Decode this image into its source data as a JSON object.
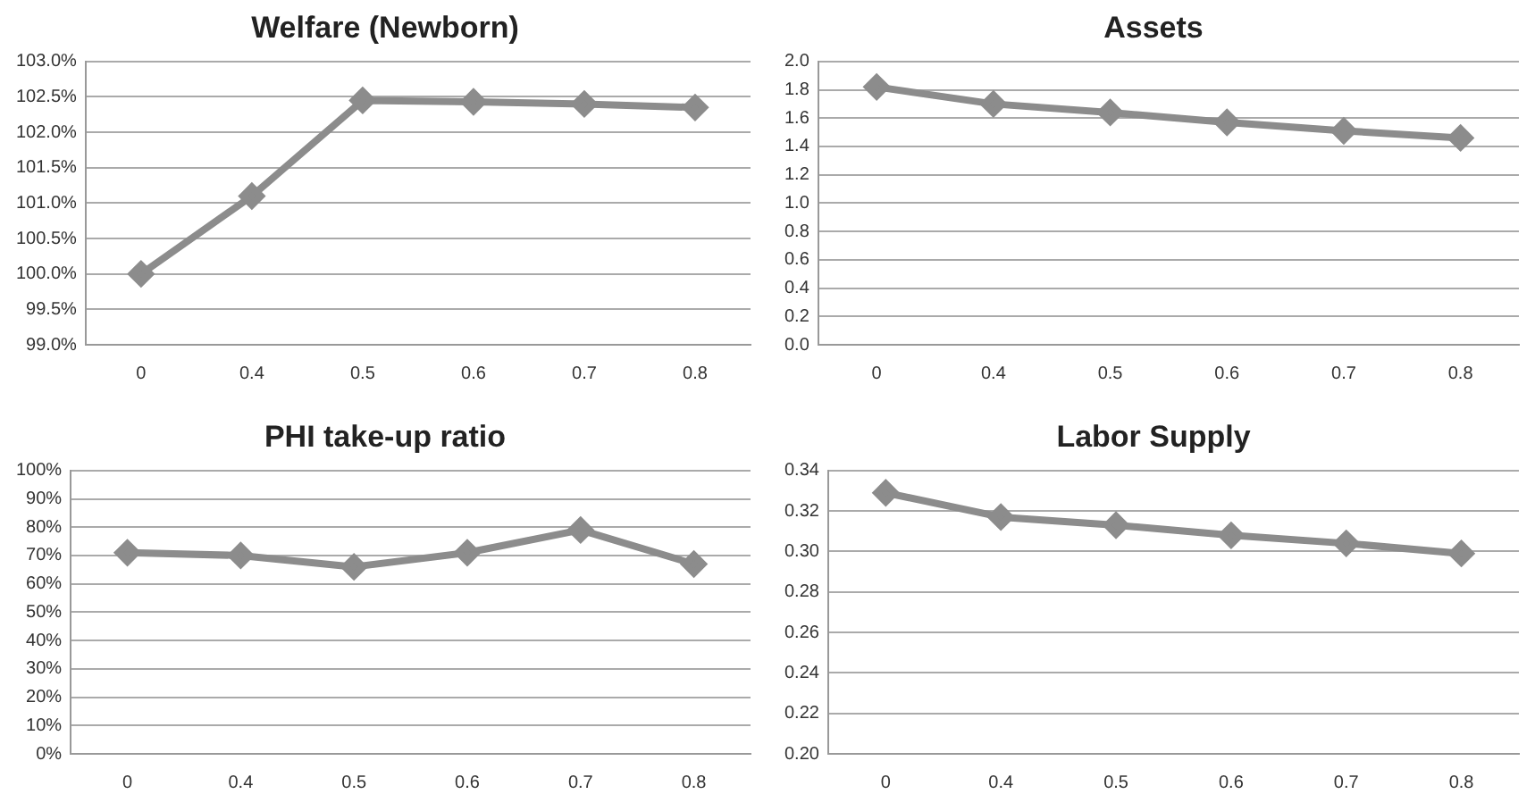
{
  "chart_data": [
    {
      "type": "line",
      "title": "Welfare (Newborn)",
      "categories": [
        "0",
        "0.4",
        "0.5",
        "0.6",
        "0.7",
        "0.8"
      ],
      "series": [
        {
          "color": "#8c8c8c",
          "values": [
            100.0,
            101.1,
            102.45,
            102.43,
            102.4,
            102.35
          ]
        }
      ],
      "ylim": [
        99,
        103
      ],
      "yticks": [
        {
          "value": 99,
          "label": "99.0%"
        },
        {
          "value": 99.5,
          "label": "99.5%"
        },
        {
          "value": 100,
          "label": "100.0%"
        },
        {
          "value": 100.5,
          "label": "100.5%"
        },
        {
          "value": 101,
          "label": "101.0%"
        },
        {
          "value": 101.5,
          "label": "101.5%"
        },
        {
          "value": 102,
          "label": "102.0%"
        },
        {
          "value": 102.5,
          "label": "102.5%"
        },
        {
          "value": 103,
          "label": "103.0%"
        }
      ],
      "grid": "y",
      "marker": "diamond",
      "line_style": "solid"
    },
    {
      "type": "line",
      "title": "Assets",
      "categories": [
        "0",
        "0.4",
        "0.5",
        "0.6",
        "0.7",
        "0.8"
      ],
      "series": [
        {
          "color": "#8c8c8c",
          "values": [
            1.82,
            1.7,
            1.64,
            1.57,
            1.51,
            1.46
          ]
        }
      ],
      "ylim": [
        0,
        2
      ],
      "yticks": [
        {
          "value": 0,
          "label": "0.0"
        },
        {
          "value": 0.2,
          "label": "0.2"
        },
        {
          "value": 0.4,
          "label": "0.4"
        },
        {
          "value": 0.6,
          "label": "0.6"
        },
        {
          "value": 0.8,
          "label": "0.8"
        },
        {
          "value": 1,
          "label": "1.0"
        },
        {
          "value": 1.2,
          "label": "1.2"
        },
        {
          "value": 1.4,
          "label": "1.4"
        },
        {
          "value": 1.6,
          "label": "1.6"
        },
        {
          "value": 1.8,
          "label": "1.8"
        },
        {
          "value": 2,
          "label": "2.0"
        }
      ],
      "grid": "y",
      "marker": "diamond",
      "line_style": "solid"
    },
    {
      "type": "line",
      "title": "PHI take-up ratio",
      "categories": [
        "0",
        "0.4",
        "0.5",
        "0.6",
        "0.7",
        "0.8"
      ],
      "series": [
        {
          "color": "#8c8c8c",
          "values": [
            71,
            70,
            66,
            71,
            79,
            67
          ]
        }
      ],
      "ylim": [
        0,
        100
      ],
      "yticks": [
        {
          "value": 0,
          "label": "0%"
        },
        {
          "value": 10,
          "label": "10%"
        },
        {
          "value": 20,
          "label": "20%"
        },
        {
          "value": 30,
          "label": "30%"
        },
        {
          "value": 40,
          "label": "40%"
        },
        {
          "value": 50,
          "label": "50%"
        },
        {
          "value": 60,
          "label": "60%"
        },
        {
          "value": 70,
          "label": "70%"
        },
        {
          "value": 80,
          "label": "80%"
        },
        {
          "value": 90,
          "label": "90%"
        },
        {
          "value": 100,
          "label": "100%"
        }
      ],
      "grid": "y",
      "marker": "diamond",
      "line_style": "solid"
    },
    {
      "type": "line",
      "title": "Labor Supply",
      "categories": [
        "0",
        "0.4",
        "0.5",
        "0.6",
        "0.7",
        "0.8"
      ],
      "series": [
        {
          "color": "#8c8c8c",
          "values": [
            0.329,
            0.317,
            0.313,
            0.308,
            0.304,
            0.299
          ]
        }
      ],
      "ylim": [
        0.2,
        0.34
      ],
      "yticks": [
        {
          "value": 0.2,
          "label": "0.20"
        },
        {
          "value": 0.22,
          "label": "0.22"
        },
        {
          "value": 0.24,
          "label": "0.24"
        },
        {
          "value": 0.26,
          "label": "0.26"
        },
        {
          "value": 0.28,
          "label": "0.28"
        },
        {
          "value": 0.3,
          "label": "0.30"
        },
        {
          "value": 0.32,
          "label": "0.32"
        },
        {
          "value": 0.34,
          "label": "0.34"
        }
      ],
      "grid": "y",
      "marker": "diamond",
      "line_style": "solid"
    }
  ]
}
